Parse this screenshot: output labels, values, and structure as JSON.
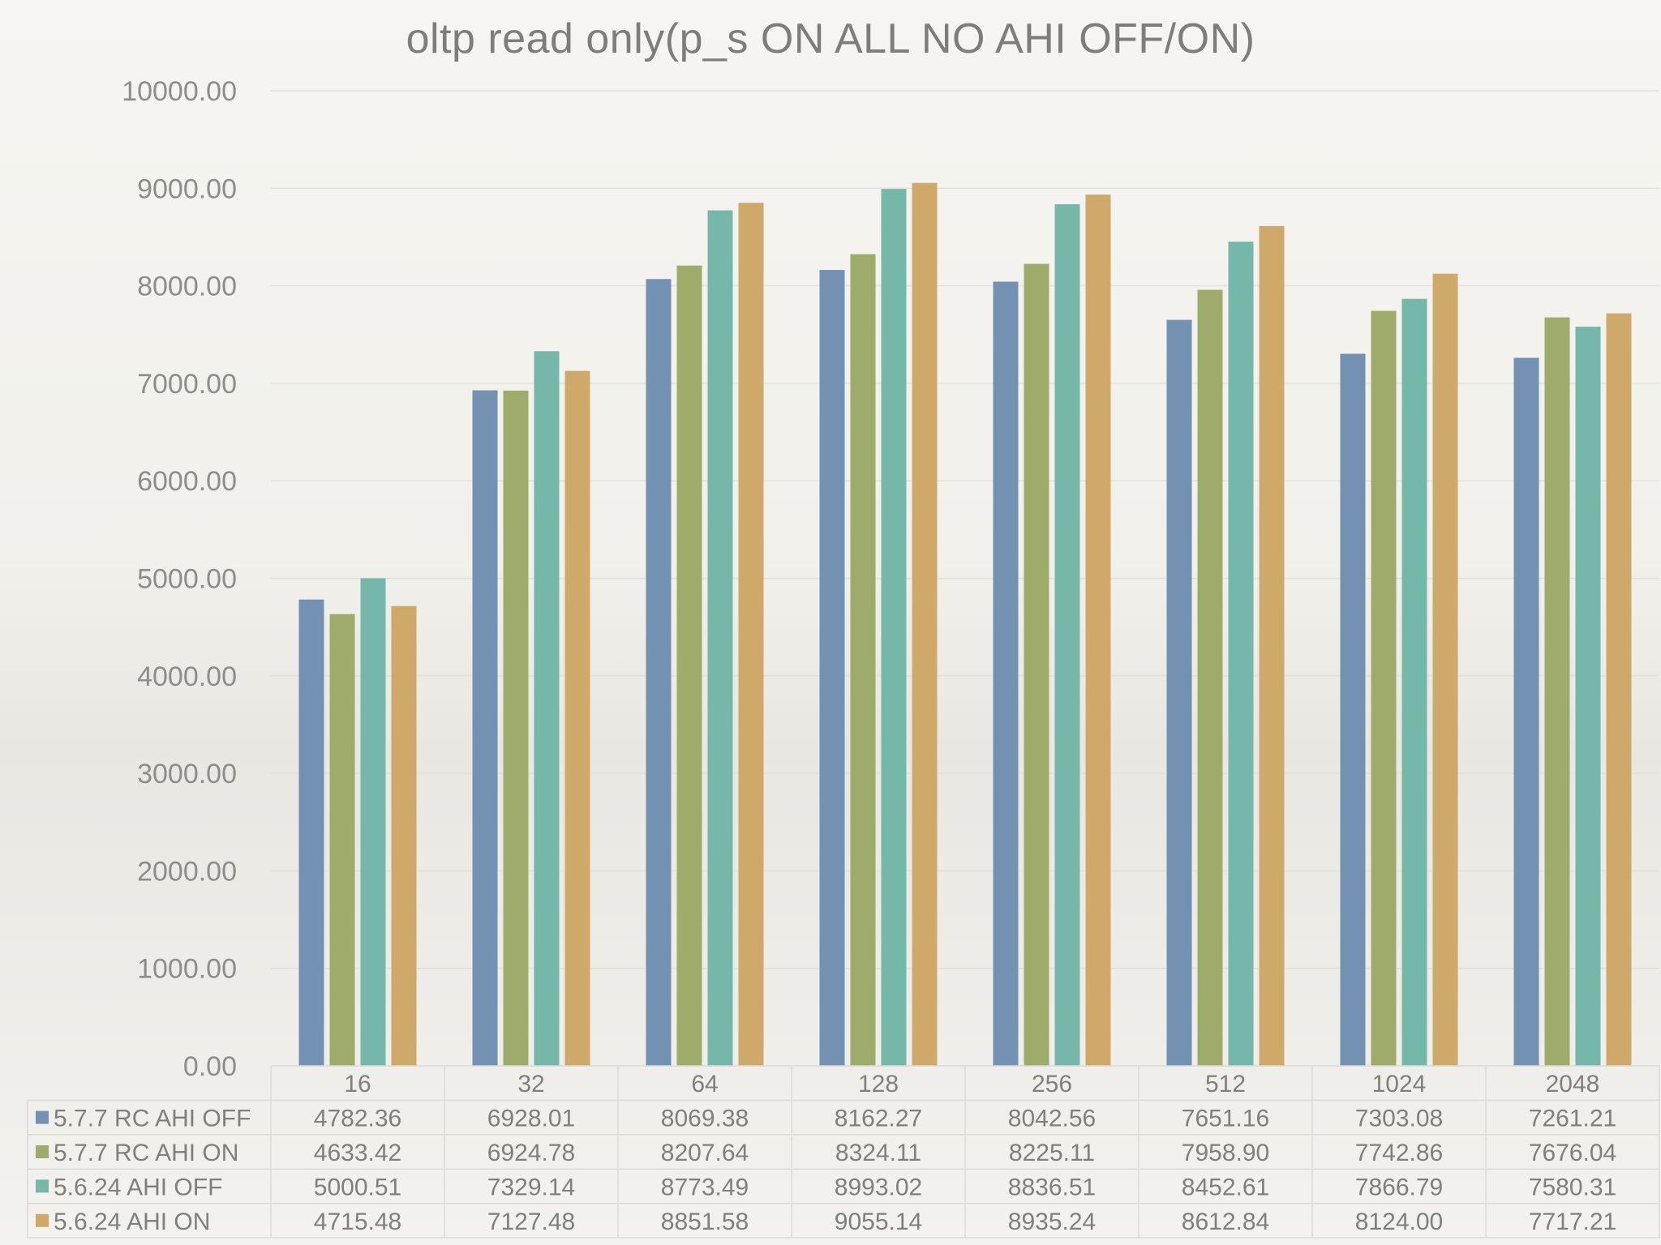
{
  "chart_data": {
    "type": "bar",
    "title": "oltp read only(p_s ON ALL NO AHI OFF/ON)",
    "xlabel": "",
    "ylabel": "",
    "ylim": [
      0,
      10000
    ],
    "yticks": [
      "0.00",
      "1000.00",
      "2000.00",
      "3000.00",
      "4000.00",
      "5000.00",
      "6000.00",
      "7000.00",
      "8000.00",
      "9000.00",
      "10000.00"
    ],
    "grid": true,
    "legend": "data-table-left",
    "categories": [
      "16",
      "32",
      "64",
      "128",
      "256",
      "512",
      "1024",
      "2048"
    ],
    "series": [
      {
        "name": "5.7.7 RC AHI OFF",
        "color": "#7391b2",
        "values": [
          4782.36,
          6928.01,
          8069.38,
          8162.27,
          8042.56,
          7651.16,
          7303.08,
          7261.21
        ],
        "labels": [
          "4782.36",
          "6928.01",
          "8069.38",
          "8162.27",
          "8042.56",
          "7651.16",
          "7303.08",
          "7261.21"
        ]
      },
      {
        "name": "5.7.7 RC AHI ON",
        "color": "#9eab6b",
        "values": [
          4633.42,
          6924.78,
          8207.64,
          8324.11,
          8225.11,
          7958.9,
          7742.86,
          7676.04
        ],
        "labels": [
          "4633.42",
          "6924.78",
          "8207.64",
          "8324.11",
          "8225.11",
          "7958.90",
          "7742.86",
          "7676.04"
        ]
      },
      {
        "name": "5.6.24 AHI OFF",
        "color": "#75b8aa",
        "values": [
          5000.51,
          7329.14,
          8773.49,
          8993.02,
          8836.51,
          8452.61,
          7866.79,
          7580.31
        ],
        "labels": [
          "5000.51",
          "7329.14",
          "8773.49",
          "8993.02",
          "8836.51",
          "8452.61",
          "7866.79",
          "7580.31"
        ]
      },
      {
        "name": "5.6.24 AHI ON",
        "color": "#cea96a",
        "values": [
          4715.48,
          7127.48,
          8851.58,
          9055.14,
          8935.24,
          8612.84,
          8124.0,
          7717.21
        ],
        "labels": [
          "4715.48",
          "7127.48",
          "8851.58",
          "9055.14",
          "8935.24",
          "8612.84",
          "8124.00",
          "7717.21"
        ]
      }
    ]
  }
}
